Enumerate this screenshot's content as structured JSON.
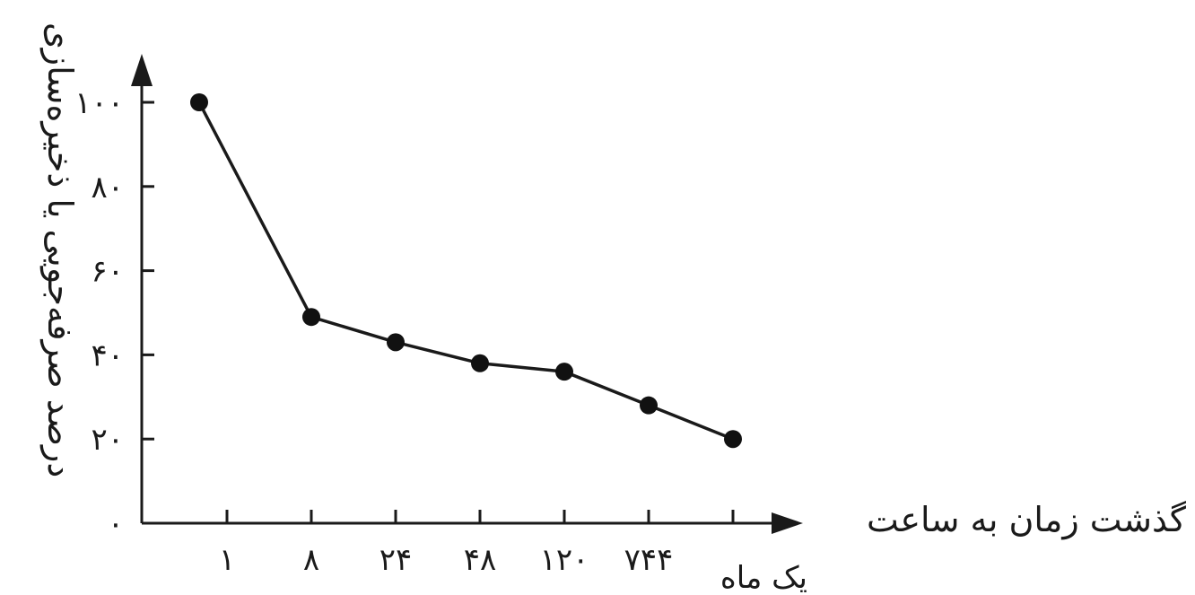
{
  "chart_data": {
    "type": "line",
    "xlabel": "گذشت زمان به ساعت",
    "ylabel": "درصد صرفه‌جویی یا ذخیره‌سازی",
    "categories": [
      "۱",
      "۸",
      "۲۴",
      "۴۸",
      "۱۲۰",
      "۷۴۴",
      "یک ماه"
    ],
    "y_ticks": [
      "۰",
      "۲۰",
      "۴۰",
      "۶۰",
      "۸۰",
      "۱۰۰"
    ],
    "ylim": [
      0,
      100
    ],
    "grid": false,
    "series": [
      {
        "values": [
          100,
          49,
          43,
          38,
          36,
          28,
          20
        ]
      }
    ]
  }
}
